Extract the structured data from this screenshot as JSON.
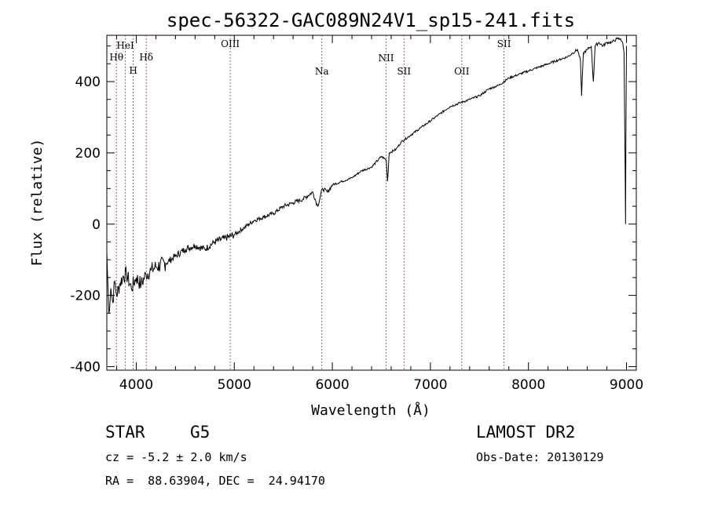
{
  "chart_data": {
    "type": "line",
    "title": "spec-56322-GAC089N24V1_sp15-241.fits",
    "xlabel": "Wavelength (Å)",
    "ylabel": "Flux (relative)",
    "xlim": [
      3700,
      9100
    ],
    "ylim": [
      -410,
      530
    ],
    "xticks": [
      4000,
      5000,
      6000,
      7000,
      8000,
      9000
    ],
    "yticks": [
      -400,
      -200,
      0,
      200,
      400
    ],
    "grid": false,
    "series": [
      {
        "x": [
          3700,
          3720,
          3740,
          3760,
          3780,
          3800,
          3830,
          3860,
          3900,
          3950,
          4000,
          4050,
          4100,
          4150,
          4200,
          4300,
          4400,
          4500,
          4600,
          4700,
          4800,
          4900,
          5000,
          5100,
          5200,
          5300,
          5400,
          5500,
          5600,
          5700,
          5800,
          5850,
          5900,
          5950,
          6000,
          6100,
          6200,
          6300,
          6400,
          6500,
          6550,
          6563,
          6580,
          6650,
          6700,
          6800,
          6900,
          7000,
          7100,
          7200,
          7300,
          7400,
          7500,
          7600,
          7700,
          7800,
          7900,
          8000,
          8100,
          8200,
          8300,
          8400,
          8450,
          8500,
          8530,
          8542,
          8560,
          8600,
          8640,
          8662,
          8680,
          8720,
          8760,
          8800,
          8850,
          8900,
          8940,
          8960,
          8975,
          8985,
          8990,
          8995,
          9000
        ],
        "y": [
          -80,
          -250,
          -180,
          -220,
          -160,
          -200,
          -170,
          -150,
          -140,
          -180,
          -150,
          -170,
          -140,
          -130,
          -120,
          -110,
          -90,
          -70,
          -60,
          -70,
          -50,
          -40,
          -30,
          -10,
          10,
          20,
          30,
          50,
          60,
          70,
          90,
          50,
          100,
          90,
          110,
          120,
          130,
          150,
          160,
          190,
          180,
          120,
          200,
          210,
          230,
          250,
          270,
          290,
          310,
          330,
          340,
          350,
          360,
          380,
          390,
          410,
          420,
          430,
          440,
          450,
          460,
          470,
          480,
          490,
          460,
          360,
          480,
          490,
          500,
          400,
          500,
          510,
          500,
          510,
          510,
          520,
          520,
          510,
          480,
          200,
          0,
          300,
          500
        ]
      }
    ],
    "lines": [
      {
        "label": "Hθ",
        "x": 3798
      },
      {
        "label": "HeI",
        "x": 3889
      },
      {
        "label": "H",
        "x": 3969
      },
      {
        "label": "Hδ",
        "x": 4102
      },
      {
        "label": "OIII",
        "x": 4959
      },
      {
        "label": "Na",
        "x": 5893
      },
      {
        "label": "NII",
        "x": 6548
      },
      {
        "label": "SII",
        "x": 6731
      },
      {
        "label": "OII",
        "x": 7320
      },
      {
        "label": "SII",
        "x": 7751
      }
    ]
  },
  "info": {
    "object_class": "STAR",
    "subclass": "G5",
    "survey": "LAMOST DR2",
    "redshift_line": "cz = -5.2 ± 2.0 km/s",
    "obs_date_line": "Obs-Date: 20130129",
    "coords_line": "RA =  88.63904, DEC =  24.94170"
  },
  "colors": {
    "line_marker": "#b22222",
    "spectrum": "#000000",
    "axes": "#000000"
  }
}
